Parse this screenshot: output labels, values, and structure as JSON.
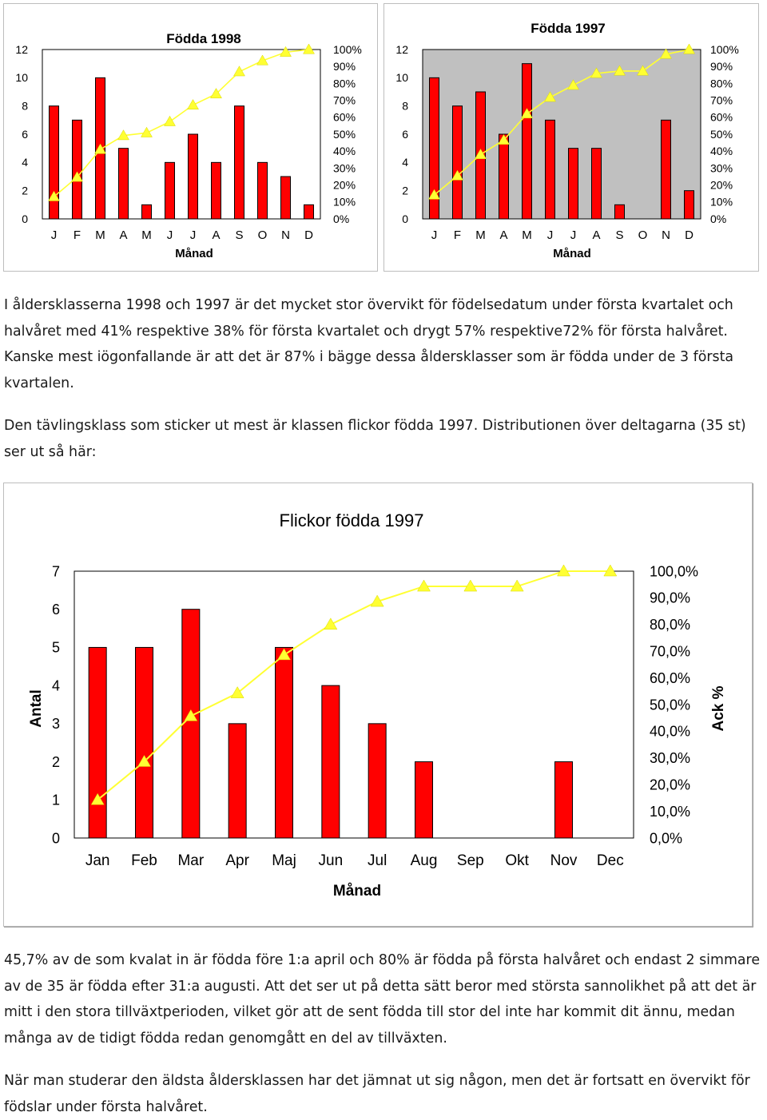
{
  "colors": {
    "bar": "#ff0000",
    "line": "#ffff33",
    "plot_bg": "#c0c0c0",
    "border": "#000000"
  },
  "chart_data": [
    {
      "type": "bar",
      "title": "Födda 1998",
      "xlabel": "Månad",
      "ylabel": "",
      "ylim": [
        0,
        12
      ],
      "y2lim": [
        0,
        100
      ],
      "y_ticks": [
        "0",
        "2",
        "4",
        "6",
        "8",
        "10",
        "12"
      ],
      "y2_ticks": [
        "0%",
        "10%",
        "20%",
        "30%",
        "40%",
        "50%",
        "60%",
        "70%",
        "80%",
        "90%",
        "100%"
      ],
      "categories": [
        "J",
        "F",
        "M",
        "A",
        "M",
        "J",
        "J",
        "A",
        "S",
        "O",
        "N",
        "D"
      ],
      "series": [
        {
          "type": "bar",
          "values": [
            8,
            7,
            10,
            5,
            1,
            4,
            6,
            4,
            8,
            4,
            3,
            1
          ]
        },
        {
          "type": "line",
          "axis": "secondary",
          "values": [
            13.1,
            24.6,
            41.0,
            49.2,
            50.8,
            57.4,
            67.2,
            73.8,
            86.9,
            93.4,
            98.4,
            100.0
          ]
        }
      ]
    },
    {
      "type": "bar",
      "title": "Födda 1997",
      "xlabel": "Månad",
      "ylabel": "",
      "ylim": [
        0,
        12
      ],
      "y2lim": [
        0,
        100
      ],
      "y_ticks": [
        "0",
        "2",
        "4",
        "6",
        "8",
        "10",
        "12"
      ],
      "y2_ticks": [
        "0%",
        "10%",
        "20%",
        "30%",
        "40%",
        "50%",
        "60%",
        "70%",
        "80%",
        "90%",
        "100%"
      ],
      "categories": [
        "J",
        "F",
        "M",
        "A",
        "M",
        "J",
        "J",
        "A",
        "S",
        "O",
        "N",
        "D"
      ],
      "series": [
        {
          "type": "bar",
          "values": [
            10,
            8,
            9,
            6,
            11,
            7,
            5,
            5,
            1,
            0,
            7,
            2
          ]
        },
        {
          "type": "line",
          "axis": "secondary",
          "values": [
            14.1,
            25.4,
            38.0,
            46.5,
            62.0,
            71.8,
            78.9,
            85.9,
            87.3,
            87.3,
            97.2,
            100.0
          ]
        }
      ]
    },
    {
      "type": "bar",
      "title": "Flickor födda 1997",
      "xlabel": "Månad",
      "ylabel": "Antal",
      "y2label": "Ack %",
      "ylim": [
        0,
        7
      ],
      "y2lim": [
        0,
        100
      ],
      "y_ticks": [
        "0",
        "1",
        "2",
        "3",
        "4",
        "5",
        "6",
        "7"
      ],
      "y2_ticks": [
        "0,0%",
        "10,0%",
        "20,0%",
        "30,0%",
        "40,0%",
        "50,0%",
        "60,0%",
        "70,0%",
        "80,0%",
        "90,0%",
        "100,0%"
      ],
      "categories": [
        "Jan",
        "Feb",
        "Mar",
        "Apr",
        "Maj",
        "Jun",
        "Jul",
        "Aug",
        "Sep",
        "Okt",
        "Nov",
        "Dec"
      ],
      "series": [
        {
          "type": "bar",
          "values": [
            5,
            5,
            6,
            3,
            5,
            4,
            3,
            2,
            0,
            0,
            2,
            0
          ]
        },
        {
          "type": "line",
          "axis": "secondary",
          "values": [
            14.3,
            28.6,
            45.7,
            54.3,
            68.6,
            80.0,
            88.6,
            94.3,
            94.3,
            94.3,
            100.0,
            100.0
          ]
        }
      ]
    }
  ],
  "text": {
    "p1": "I åldersklasserna 1998 och 1997 är det mycket stor övervikt för födelsedatum under första kvartalet och halvåret med 41% respektive 38% för första kvartalet och drygt 57% respektive72% för första halvåret. Kanske mest iögonfallande är att det är 87% i bägge dessa åldersklasser som är födda under de 3 första kvartalen.",
    "p2": "Den tävlingsklass som sticker ut mest är klassen flickor födda 1997. Distributionen över deltagarna (35 st) ser ut så här:",
    "p3": "45,7% av de som kvalat in är födda före 1:a april och 80% är födda på första halvåret och endast 2 simmare av de 35 är födda efter 31:a augusti. Att det ser ut på detta sätt beror med största sannolikhet på att det är mitt i den stora tillväxtperioden, vilket gör att de sent födda till stor del inte har kommit dit ännu, medan många av de tidigt födda redan genomgått en del av tillväxten.",
    "p4": "När man studerar den äldsta åldersklassen har det jämnat ut sig någon, men det är fortsatt en övervikt för födslar under första halvåret."
  }
}
